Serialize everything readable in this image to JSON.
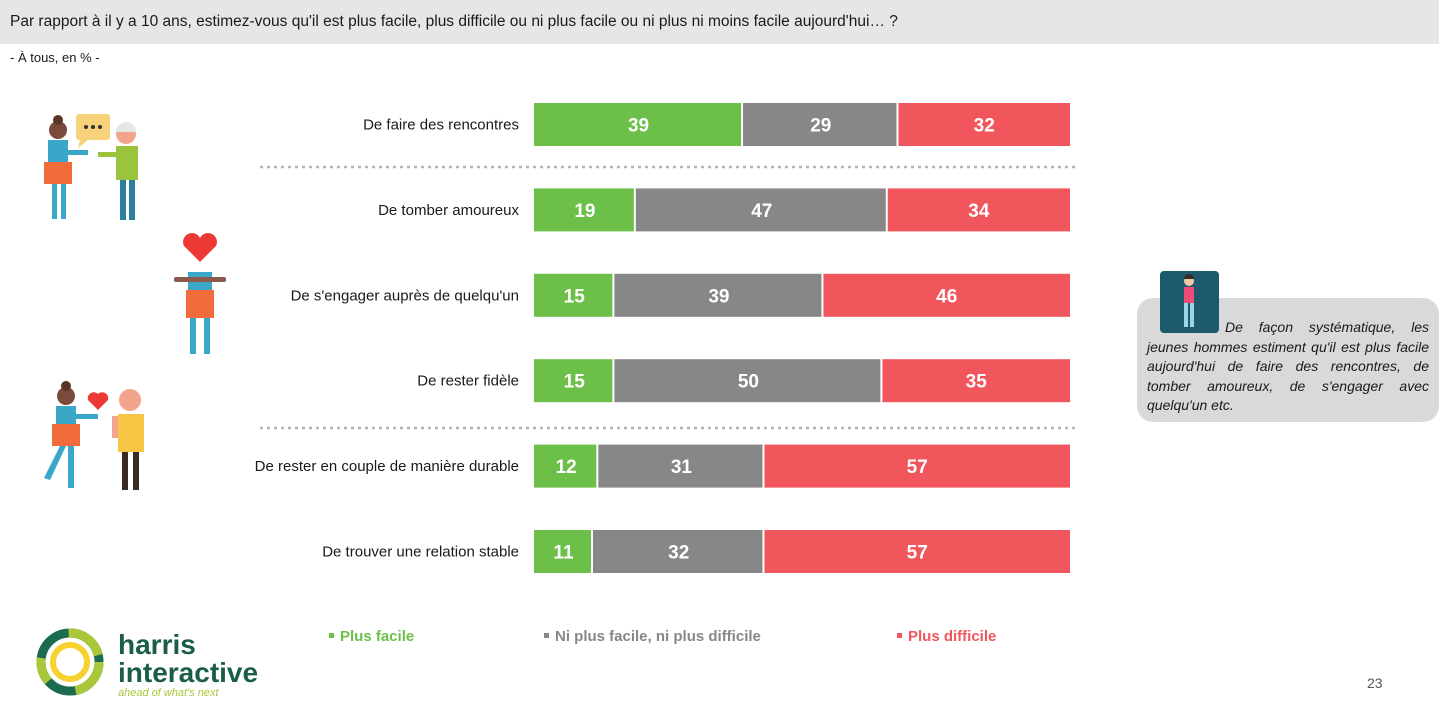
{
  "header": {
    "question": "Par rapport à il y a 10 ans, estimez-vous qu'il est plus facile, plus difficile ou ni plus facile ou ni plus ni moins facile aujourd'hui… ?",
    "base": "- À tous, en % -"
  },
  "chart_data": {
    "type": "bar",
    "orientation": "horizontal",
    "stacked": true,
    "categories": [
      "De faire des rencontres",
      "De tomber amoureux",
      "De s'engager auprès de quelqu'un",
      "De rester fidèle",
      "De rester en couple de manière durable",
      "De trouver une relation stable"
    ],
    "series": [
      {
        "name": "Plus facile",
        "values": [
          39,
          19,
          15,
          15,
          12,
          11
        ],
        "color": "#6cc04a"
      },
      {
        "name": "Ni plus facile, ni plus difficile",
        "values": [
          29,
          47,
          39,
          50,
          31,
          32
        ],
        "color": "#878787"
      },
      {
        "name": "Plus difficile",
        "values": [
          32,
          34,
          46,
          35,
          57,
          57
        ],
        "color": "#f0565b"
      }
    ],
    "xlim": [
      0,
      100
    ],
    "legend_position": "bottom",
    "grid": false
  },
  "legend": {
    "items": [
      {
        "label": "Plus facile",
        "color": "#6cc04a"
      },
      {
        "label": "Ni plus facile, ni plus difficile",
        "color": "#878787"
      },
      {
        "label": "Plus difficile",
        "color": "#f0565b"
      }
    ]
  },
  "callout": {
    "text": "De façon systématique, les jeunes hommes estiment qu'il est plus facile aujourd'hui de faire des rencontres, de tomber amoureux, de s'engager avec quelqu'un etc.",
    "icon": "young-man-icon"
  },
  "brand": {
    "name_line1": "harris",
    "name_line2": "interactive",
    "tagline": "ahead of what's next",
    "primary_color": "#1b6b4e",
    "accent_color": "#a8c83a"
  },
  "page_number": "23",
  "illustrations": [
    "chatting-couple-icon",
    "heart-person-icon",
    "giving-heart-couple-icon"
  ]
}
